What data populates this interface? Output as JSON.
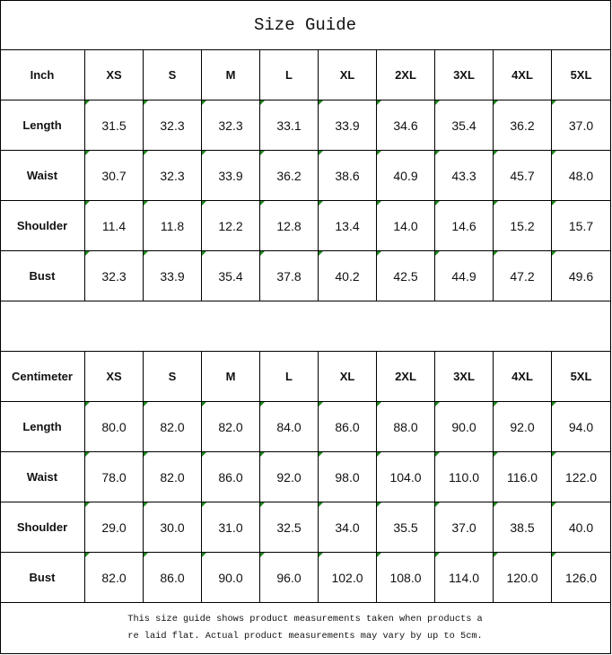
{
  "title": "Size Guide",
  "accent_marker_color": "#1a8a1a",
  "inch_table": {
    "header": [
      "Inch",
      "XS",
      "S",
      "M",
      "L",
      "XL",
      "2XL",
      "3XL",
      "4XL",
      "5XL"
    ],
    "rows": [
      [
        "Length",
        "31.5",
        "32.3",
        "32.3",
        "33.1",
        "33.9",
        "34.6",
        "35.4",
        "36.2",
        "37.0"
      ],
      [
        "Waist",
        "30.7",
        "32.3",
        "33.9",
        "36.2",
        "38.6",
        "40.9",
        "43.3",
        "45.7",
        "48.0"
      ],
      [
        "Shoulder",
        "11.4",
        "11.8",
        "12.2",
        "12.8",
        "13.4",
        "14.0",
        "14.6",
        "15.2",
        "15.7"
      ],
      [
        "Bust",
        "32.3",
        "33.9",
        "35.4",
        "37.8",
        "40.2",
        "42.5",
        "44.9",
        "47.2",
        "49.6"
      ]
    ]
  },
  "cm_table": {
    "header": [
      "Centimeter",
      "XS",
      "S",
      "M",
      "L",
      "XL",
      "2XL",
      "3XL",
      "4XL",
      "5XL"
    ],
    "rows": [
      [
        "Length",
        "80.0",
        "82.0",
        "82.0",
        "84.0",
        "86.0",
        "88.0",
        "90.0",
        "92.0",
        "94.0"
      ],
      [
        "Waist",
        "78.0",
        "82.0",
        "86.0",
        "92.0",
        "98.0",
        "104.0",
        "110.0",
        "116.0",
        "122.0"
      ],
      [
        "Shoulder",
        "29.0",
        "30.0",
        "31.0",
        "32.5",
        "34.0",
        "35.5",
        "37.0",
        "38.5",
        "40.0"
      ],
      [
        "Bust",
        "82.0",
        "86.0",
        "90.0",
        "96.0",
        "102.0",
        "108.0",
        "114.0",
        "120.0",
        "126.0"
      ]
    ]
  },
  "note": {
    "lines": [
      "This size guide shows product measurements taken when products a",
      "re laid flat. Actual product measurements may vary by up to 5cm."
    ]
  }
}
